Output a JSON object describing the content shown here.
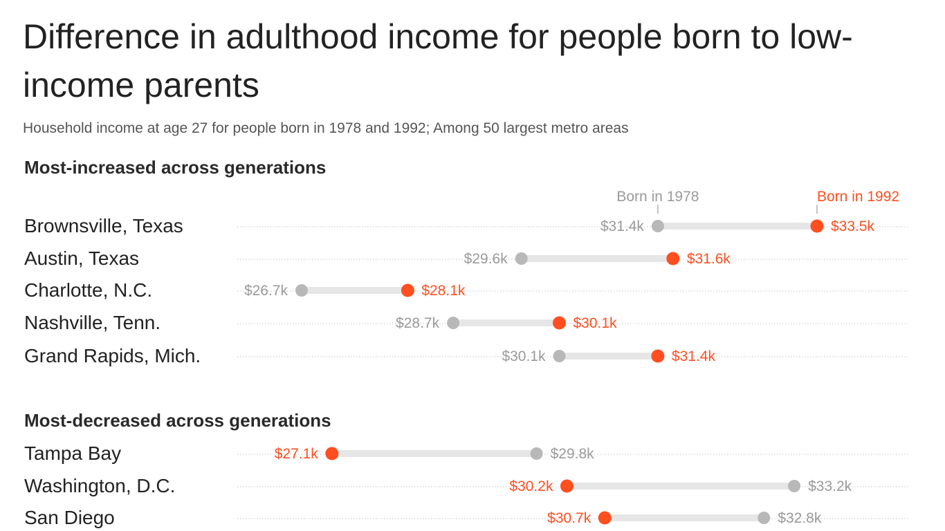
{
  "title": "Difference in adulthood income for people born to low-income parents",
  "subtitle": "Household income at age 27 for people born in 1978 and 1992; Among 50 largest metro areas",
  "legend": {
    "born1978": "Born in 1978",
    "born1992": "Born in 1992"
  },
  "colors": {
    "born1978": "#b8b8b8",
    "born1992": "#ff4e1f",
    "bar": "#e6e6e6",
    "dots": "#cfcfcf"
  },
  "chart_data": {
    "type": "dumbbell",
    "title": "Difference in adulthood income for people born to low-income parents",
    "subtitle": "Household income at age 27 for people born in 1978 and 1992; Among 50 largest metro areas",
    "xlim": [
      26.0,
      34.0
    ],
    "series": [
      "Born in 1978",
      "Born in 1992"
    ],
    "groups": [
      {
        "heading": "Most-increased across generations",
        "rows": [
          {
            "metro": "Brownsville, Texas",
            "born1978": 31.4,
            "born1978_label": "$31.4k",
            "born1992": 33.5,
            "born1992_label": "$33.5k"
          },
          {
            "metro": "Austin, Texas",
            "born1978": 29.6,
            "born1978_label": "$29.6k",
            "born1992": 31.6,
            "born1992_label": "$31.6k"
          },
          {
            "metro": "Charlotte, N.C.",
            "born1978": 26.7,
            "born1978_label": "$26.7k",
            "born1992": 28.1,
            "born1992_label": "$28.1k"
          },
          {
            "metro": "Nashville, Tenn.",
            "born1978": 28.7,
            "born1978_label": "$28.7k",
            "born1992": 30.1,
            "born1992_label": "$30.1k"
          },
          {
            "metro": "Grand Rapids, Mich.",
            "born1978": 30.1,
            "born1978_label": "$30.1k",
            "born1992": 31.4,
            "born1992_label": "$31.4k"
          }
        ]
      },
      {
        "heading": "Most-decreased across generations",
        "rows": [
          {
            "metro": "Tampa Bay",
            "born1978": 29.8,
            "born1978_label": "$29.8k",
            "born1992": 27.1,
            "born1992_label": "$27.1k"
          },
          {
            "metro": "Washington, D.C.",
            "born1978": 33.2,
            "born1978_label": "$33.2k",
            "born1992": 30.2,
            "born1992_label": "$30.2k"
          },
          {
            "metro": "San Diego",
            "born1978": 32.8,
            "born1978_label": "$32.8k",
            "born1992": 30.7,
            "born1992_label": "$30.7k"
          }
        ]
      }
    ]
  }
}
